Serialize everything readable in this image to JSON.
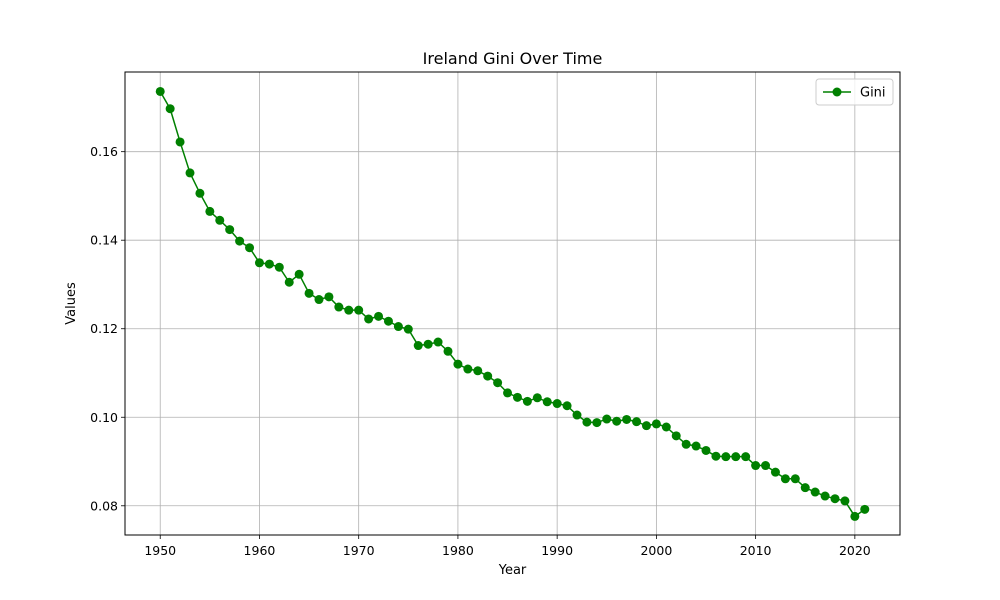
{
  "chart_data": {
    "type": "line",
    "title": "Ireland Gini Over Time",
    "xlabel": "Year",
    "ylabel": "Values",
    "xlim": [
      1946.45,
      2024.55
    ],
    "ylim": [
      0.0734,
      0.178
    ],
    "xticks": [
      1950,
      1960,
      1970,
      1980,
      1990,
      2000,
      2010,
      2020
    ],
    "yticks": [
      0.08,
      0.1,
      0.12,
      0.14,
      0.16
    ],
    "ytick_labels": [
      "0.08",
      "0.10",
      "0.12",
      "0.14",
      "0.16"
    ],
    "grid": true,
    "legend_position": "top-right",
    "series": [
      {
        "name": "Gini",
        "color": "#008000",
        "marker": "circle",
        "x": [
          1950,
          1951,
          1952,
          1953,
          1954,
          1955,
          1956,
          1957,
          1958,
          1959,
          1960,
          1961,
          1962,
          1963,
          1964,
          1965,
          1966,
          1967,
          1968,
          1969,
          1970,
          1971,
          1972,
          1973,
          1974,
          1975,
          1976,
          1977,
          1978,
          1979,
          1980,
          1981,
          1982,
          1983,
          1984,
          1985,
          1986,
          1987,
          1988,
          1989,
          1990,
          1991,
          1992,
          1993,
          1994,
          1995,
          1996,
          1997,
          1998,
          1999,
          2000,
          2001,
          2002,
          2003,
          2004,
          2005,
          2006,
          2007,
          2008,
          2009,
          2010,
          2011,
          2012,
          2013,
          2014,
          2015,
          2016,
          2017,
          2018,
          2019,
          2020,
          2021
        ],
        "values": [
          0.1736,
          0.1697,
          0.1622,
          0.1552,
          0.1506,
          0.1465,
          0.1445,
          0.1424,
          0.1398,
          0.1383,
          0.1349,
          0.1346,
          0.1339,
          0.1305,
          0.1323,
          0.128,
          0.1266,
          0.1272,
          0.1249,
          0.1242,
          0.1242,
          0.1222,
          0.1228,
          0.1217,
          0.1205,
          0.1199,
          0.1162,
          0.1165,
          0.117,
          0.1149,
          0.112,
          0.1109,
          0.1105,
          0.1093,
          0.1078,
          0.1055,
          0.1045,
          0.1036,
          0.1044,
          0.1035,
          0.1031,
          0.1026,
          0.1005,
          0.0989,
          0.0988,
          0.0996,
          0.0991,
          0.0995,
          0.099,
          0.0981,
          0.0985,
          0.0978,
          0.0958,
          0.0939,
          0.0935,
          0.0925,
          0.0912,
          0.0911,
          0.0911,
          0.0911,
          0.0891,
          0.0891,
          0.0876,
          0.0861,
          0.0861,
          0.0841,
          0.0831,
          0.0822,
          0.0816,
          0.0811,
          0.0776,
          0.0792
        ]
      }
    ]
  }
}
